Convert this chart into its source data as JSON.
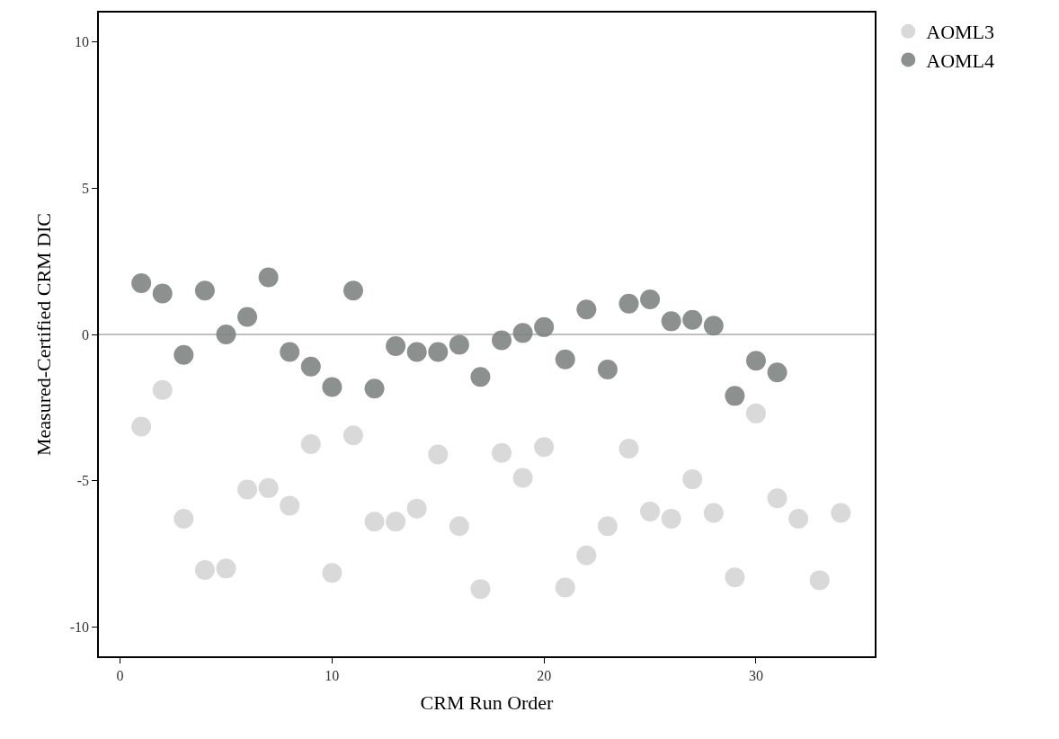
{
  "chart_data": {
    "type": "scatter",
    "xlabel": "CRM Run Order",
    "ylabel": "Measured-Certified CRM DIC",
    "xlim": [
      -1,
      35.6
    ],
    "xticks": [
      0,
      10,
      20,
      30
    ],
    "ylim": [
      -11,
      11
    ],
    "yticks": [
      -10,
      -5,
      0,
      5,
      10
    ],
    "legend": "top right",
    "marker": "circle",
    "ref_lines": [
      {
        "axis": "y",
        "value": 0,
        "color": "#808080"
      }
    ],
    "series": [
      {
        "name": "AOML3",
        "color": "#d9d9d9",
        "x": [
          1,
          2,
          3,
          4,
          5,
          6,
          7,
          8,
          9,
          10,
          11,
          12,
          13,
          14,
          15,
          16,
          17,
          18,
          19,
          20,
          21,
          22,
          23,
          24,
          25,
          26,
          27,
          28,
          29,
          30,
          31,
          32,
          33,
          34
        ],
        "values": [
          -3.15,
          -1.9,
          -6.3,
          -8.05,
          -8.0,
          -5.3,
          -5.25,
          -5.85,
          -3.75,
          -8.15,
          -3.45,
          -6.4,
          -6.4,
          -5.95,
          -4.1,
          -6.55,
          -8.7,
          -4.05,
          -4.9,
          -3.85,
          -8.65,
          -7.55,
          -6.55,
          -3.9,
          -6.05,
          -6.3,
          -4.95,
          -6.1,
          -8.3,
          -2.7,
          -5.6,
          -6.3,
          -8.4,
          -6.1
        ]
      },
      {
        "name": "AOML4",
        "color": "#8c918f",
        "x": [
          1,
          2,
          3,
          4,
          5,
          6,
          7,
          8,
          9,
          10,
          11,
          12,
          13,
          14,
          15,
          16,
          17,
          18,
          19,
          20,
          21,
          22,
          23,
          24,
          25,
          26,
          27,
          28,
          29,
          30,
          31
        ],
        "values": [
          1.75,
          1.4,
          -0.7,
          1.5,
          0.0,
          0.6,
          1.95,
          -0.6,
          -1.1,
          -1.8,
          1.5,
          -1.85,
          -0.4,
          -0.6,
          -0.6,
          -0.35,
          -1.45,
          -0.2,
          0.05,
          0.25,
          -0.85,
          0.85,
          -1.2,
          1.05,
          1.2,
          0.45,
          0.5,
          0.3,
          -2.1,
          -0.9,
          -1.3
        ]
      }
    ]
  }
}
